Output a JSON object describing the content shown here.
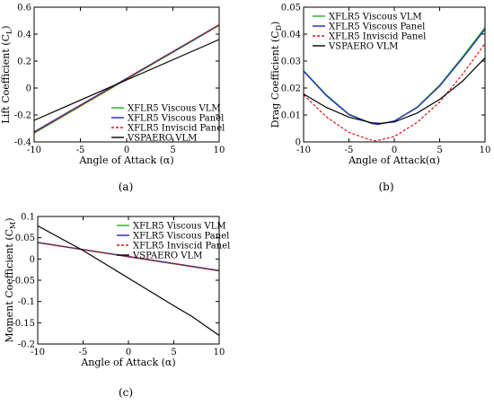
{
  "panel_labels": {
    "a": "(a)",
    "b": "(b)",
    "c": "(c)"
  },
  "colors": {
    "xflr5_viscous_vlm": "#22aa22",
    "xflr5_viscous_panel": "#1f1fcc",
    "xflr5_inviscid_panel": "#dd1111",
    "vspaero_vlm": "#000000"
  },
  "chart_data": [
    {
      "id": "a",
      "type": "line",
      "title": "",
      "xlabel": "Angle of Attack (α)",
      "ylabel": "Lift Coefficient (C",
      "ylabel_sub": "L",
      "xlim": [
        -10,
        10
      ],
      "ylim": [
        -0.4,
        0.6
      ],
      "x_ticks": [
        -10,
        -5,
        0,
        5,
        10
      ],
      "y_ticks": [
        -0.4,
        -0.2,
        0,
        0.2,
        0.4,
        0.6
      ],
      "y_tick_labels": [
        "-0.4",
        "-0.2",
        "0",
        "0.2",
        "0.4",
        "0.6"
      ],
      "legend_position": "bottom-right",
      "series": [
        {
          "name": "XFLR5 Viscous VLM",
          "color": "#22aa22",
          "dash": "",
          "x": [
            -10,
            10
          ],
          "y": [
            -0.335,
            0.465
          ]
        },
        {
          "name": "XFLR5 Viscous Panel",
          "color": "#1f1fcc",
          "dash": "",
          "x": [
            -10,
            10
          ],
          "y": [
            -0.325,
            0.47
          ]
        },
        {
          "name": "XFLR5 Inviscid Panel",
          "color": "#dd1111",
          "dash": "3,2",
          "x": [
            -10,
            10
          ],
          "y": [
            -0.33,
            0.468
          ]
        },
        {
          "name": "VSPAERO VLM",
          "color": "#000000",
          "dash": "",
          "x": [
            -10,
            10
          ],
          "y": [
            -0.24,
            0.36
          ]
        }
      ]
    },
    {
      "id": "b",
      "type": "line",
      "title": "",
      "xlabel": "Angle of Attack(α)",
      "ylabel": "Drag Coefficient (C",
      "ylabel_sub": "D",
      "xlim": [
        -10,
        10
      ],
      "ylim": [
        0,
        0.05
      ],
      "x_ticks": [
        -10,
        -5,
        0,
        5,
        10
      ],
      "y_ticks": [
        0,
        0.01,
        0.02,
        0.03,
        0.04,
        0.05
      ],
      "y_tick_labels": [
        "0",
        "0.01",
        "0.02",
        "0.03",
        "0.04",
        "0.05"
      ],
      "legend_position": "top-left",
      "series": [
        {
          "name": "XFLR5 Viscous VLM",
          "color": "#22aa22",
          "dash": "",
          "x": [
            -10,
            -7.5,
            -5,
            -2.5,
            -1.8,
            0,
            2.5,
            5,
            7.5,
            10
          ],
          "y": [
            0.0265,
            0.0175,
            0.0103,
            0.0069,
            0.0066,
            0.0078,
            0.0129,
            0.0211,
            0.0315,
            0.0425
          ]
        },
        {
          "name": "XFLR5 Viscous Panel",
          "color": "#1f1fcc",
          "dash": "",
          "x": [
            -10,
            -7.5,
            -5,
            -2.5,
            -1.8,
            0,
            2.5,
            5,
            7.5,
            10
          ],
          "y": [
            0.0262,
            0.0172,
            0.0101,
            0.0068,
            0.0065,
            0.0077,
            0.0127,
            0.0207,
            0.031,
            0.0418
          ]
        },
        {
          "name": "XFLR5 Inviscid Panel",
          "color": "#dd1111",
          "dash": "3,2",
          "x": [
            -10,
            -7.5,
            -5,
            -2.5,
            -2,
            0,
            2.5,
            5,
            7.5,
            10
          ],
          "y": [
            0.0175,
            0.0093,
            0.0035,
            0.0006,
            0.0004,
            0.002,
            0.0072,
            0.0148,
            0.025,
            0.0365
          ]
        },
        {
          "name": "VSPAERO VLM",
          "color": "#000000",
          "dash": "",
          "x": [
            -10,
            -7.5,
            -5,
            -2.5,
            -1.5,
            0,
            2.5,
            5,
            7.5,
            10
          ],
          "y": [
            0.0178,
            0.0128,
            0.0092,
            0.0071,
            0.0069,
            0.0074,
            0.0107,
            0.0158,
            0.0225,
            0.0312
          ]
        }
      ]
    },
    {
      "id": "c",
      "type": "line",
      "title": "",
      "xlabel": "Angle of Attack (α)",
      "ylabel": "Moment Coefficient (C",
      "ylabel_sub": "M",
      "xlim": [
        -10,
        10
      ],
      "ylim": [
        -0.2,
        0.1
      ],
      "x_ticks": [
        -10,
        -5,
        0,
        5,
        10
      ],
      "y_ticks": [
        -0.2,
        -0.15,
        -0.1,
        -0.05,
        0,
        0.05,
        0.1
      ],
      "y_tick_labels": [
        "-0.2",
        "-0.15",
        "-0.1",
        "-0.05",
        "0",
        "0.05",
        "0.1"
      ],
      "legend_position": "top-right",
      "series": [
        {
          "name": "XFLR5 Viscous VLM",
          "color": "#22aa22",
          "dash": "",
          "x": [
            -10,
            10
          ],
          "y": [
            0.038,
            -0.028
          ]
        },
        {
          "name": "XFLR5 Viscous Panel",
          "color": "#1f1fcc",
          "dash": "",
          "x": [
            -10,
            10
          ],
          "y": [
            0.039,
            -0.027
          ]
        },
        {
          "name": "XFLR5 Inviscid Panel",
          "color": "#dd1111",
          "dash": "3,2",
          "x": [
            -10,
            10
          ],
          "y": [
            0.0385,
            -0.0275
          ]
        },
        {
          "name": "VSPAERO VLM",
          "color": "#000000",
          "dash": "",
          "x": [
            -10,
            -5,
            0,
            5,
            7,
            10
          ],
          "y": [
            0.078,
            0.02,
            -0.045,
            -0.11,
            -0.135,
            -0.18
          ]
        }
      ]
    }
  ]
}
